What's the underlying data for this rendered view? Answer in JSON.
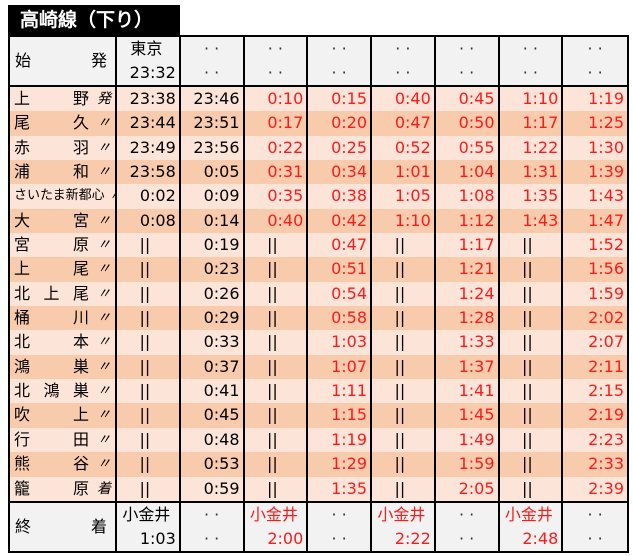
{
  "title": "高崎線（下り）",
  "header": {
    "label": "始　発",
    "origins": [
      {
        "station": "東京",
        "time": "23:32"
      },
      {
        "station": "· ·",
        "time": "· ·"
      },
      {
        "station": "· ·",
        "time": "· ·"
      },
      {
        "station": "· ·",
        "time": "· ·"
      },
      {
        "station": "· ·",
        "time": "· ·"
      },
      {
        "station": "· ·",
        "time": "· ·"
      },
      {
        "station": "· ·",
        "time": "· ·"
      },
      {
        "station": "· ·",
        "time": "· ·"
      }
    ]
  },
  "colors": {
    "red": "#ff1a1a",
    "row_light": "#fde4d9",
    "row_dark": "#f8cbad",
    "header_bg": "#f2f2f2"
  },
  "red_columns": [
    2,
    3,
    4,
    5,
    6,
    7
  ],
  "pass_mark": "||",
  "rows": [
    {
      "station": "上野",
      "suffix": "発",
      "times": [
        "23:38",
        "23:46",
        "0:10",
        "0:15",
        "0:40",
        "0:45",
        "1:10",
        "1:19"
      ]
    },
    {
      "station": "尾久",
      "suffix": "〃",
      "times": [
        "23:44",
        "23:51",
        "0:17",
        "0:20",
        "0:47",
        "0:50",
        "1:17",
        "1:25"
      ]
    },
    {
      "station": "赤羽",
      "suffix": "〃",
      "times": [
        "23:49",
        "23:56",
        "0:22",
        "0:25",
        "0:52",
        "0:55",
        "1:22",
        "1:30"
      ]
    },
    {
      "station": "浦和",
      "suffix": "〃",
      "times": [
        "23:58",
        "0:05",
        "0:31",
        "0:34",
        "1:01",
        "1:04",
        "1:31",
        "1:39"
      ]
    },
    {
      "station": "さいたま新都心",
      "suffix": "〃",
      "times": [
        "0:02",
        "0:09",
        "0:35",
        "0:38",
        "1:05",
        "1:08",
        "1:35",
        "1:43"
      ]
    },
    {
      "station": "大宮",
      "suffix": "〃",
      "times": [
        "0:08",
        "0:14",
        "0:40",
        "0:42",
        "1:10",
        "1:12",
        "1:43",
        "1:47"
      ]
    },
    {
      "station": "宮原",
      "suffix": "〃",
      "times": [
        "||",
        "0:19",
        "||",
        "0:47",
        "||",
        "1:17",
        "||",
        "1:52"
      ]
    },
    {
      "station": "上尾",
      "suffix": "〃",
      "times": [
        "||",
        "0:23",
        "||",
        "0:51",
        "||",
        "1:21",
        "||",
        "1:56"
      ]
    },
    {
      "station": "北上尾",
      "suffix": "〃",
      "times": [
        "||",
        "0:26",
        "||",
        "0:54",
        "||",
        "1:24",
        "||",
        "1:59"
      ]
    },
    {
      "station": "桶川",
      "suffix": "〃",
      "times": [
        "||",
        "0:29",
        "||",
        "0:58",
        "||",
        "1:28",
        "||",
        "2:02"
      ]
    },
    {
      "station": "北本",
      "suffix": "〃",
      "times": [
        "||",
        "0:33",
        "||",
        "1:03",
        "||",
        "1:33",
        "||",
        "2:07"
      ]
    },
    {
      "station": "鴻巣",
      "suffix": "〃",
      "times": [
        "||",
        "0:37",
        "||",
        "1:07",
        "||",
        "1:37",
        "||",
        "2:11"
      ]
    },
    {
      "station": "北鴻巣",
      "suffix": "〃",
      "times": [
        "||",
        "0:41",
        "||",
        "1:11",
        "||",
        "1:41",
        "||",
        "2:15"
      ]
    },
    {
      "station": "吹上",
      "suffix": "〃",
      "times": [
        "||",
        "0:45",
        "||",
        "1:15",
        "||",
        "1:45",
        "||",
        "2:19"
      ]
    },
    {
      "station": "行田",
      "suffix": "〃",
      "times": [
        "||",
        "0:48",
        "||",
        "1:19",
        "||",
        "1:49",
        "||",
        "2:23"
      ]
    },
    {
      "station": "熊谷",
      "suffix": "〃",
      "times": [
        "||",
        "0:53",
        "||",
        "1:29",
        "||",
        "1:59",
        "||",
        "2:33"
      ]
    },
    {
      "station": "籠原",
      "suffix": "着",
      "times": [
        "||",
        "0:59",
        "||",
        "1:35",
        "||",
        "2:05",
        "||",
        "2:39"
      ]
    }
  ],
  "footer": {
    "label": "終　着",
    "terminals": [
      {
        "station": "小金井",
        "time": "1:03"
      },
      {
        "station": "· ·",
        "time": "· ·"
      },
      {
        "station": "小金井",
        "time": "2:00"
      },
      {
        "station": "· ·",
        "time": "· ·"
      },
      {
        "station": "小金井",
        "time": "2:22"
      },
      {
        "station": "· ·",
        "time": "· ·"
      },
      {
        "station": "小金井",
        "time": "2:48"
      },
      {
        "station": "· ·",
        "time": "· ·"
      }
    ]
  }
}
